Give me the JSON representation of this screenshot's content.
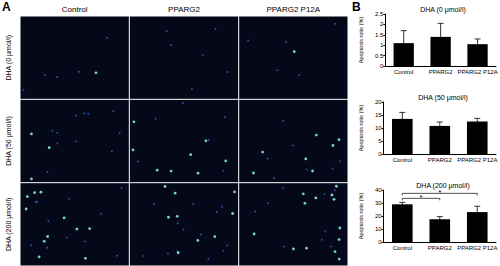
{
  "panel_labels": [
    "A",
    "B"
  ],
  "microscopy": {
    "columns": [
      "Control",
      "PPARG2",
      "PPARG2 P12A"
    ],
    "rows": [
      "DHA (0 μmol/l)",
      "DHA (50 μmol/l)",
      "DHA (200 μmol/l)"
    ]
  },
  "chart_data": [
    {
      "type": "bar",
      "title": "DHA (0 μmol/l)",
      "y_label": "Apoptosis ratio (%)",
      "categories": [
        "Control",
        "PPARG2",
        "PPARG2 P12A"
      ],
      "values": [
        1.1,
        1.4,
        1.05
      ],
      "errors": [
        0.6,
        0.65,
        0.25
      ],
      "color": "#000000",
      "ylim": [
        0,
        2.5
      ],
      "yticks": [
        0,
        0.5,
        1,
        1.5,
        2,
        2.5
      ],
      "grid": false
    },
    {
      "type": "bar",
      "title": "DHA (50 μmol/l)",
      "y_label": "Apoptosis ratio (%)",
      "categories": [
        "Control",
        "PPARG2",
        "PPARG2 P12A"
      ],
      "values": [
        13.5,
        10.8,
        12.5
      ],
      "errors": [
        2.5,
        1.5,
        1.2
      ],
      "color": "#000000",
      "ylim": [
        0,
        20
      ],
      "yticks": [
        0,
        5,
        10,
        15,
        20
      ],
      "grid": false
    },
    {
      "type": "bar",
      "title": "DHA (200 μmol/l)",
      "y_label": "Apoptosis ratio (%)",
      "categories": [
        "Control",
        "PPARG2",
        "PPARG2 P12A"
      ],
      "values": [
        29,
        17.5,
        23
      ],
      "errors": [
        1.5,
        2,
        4.5
      ],
      "color": "#000000",
      "ylim": [
        0,
        40
      ],
      "yticks": [
        0,
        10,
        20,
        30,
        40
      ],
      "grid": false,
      "significance": [
        {
          "from": "Control",
          "to": "PPARG2",
          "label": "*"
        },
        {
          "from": "Control",
          "to": "PPARG2 P12A",
          "label": "*"
        }
      ]
    }
  ]
}
